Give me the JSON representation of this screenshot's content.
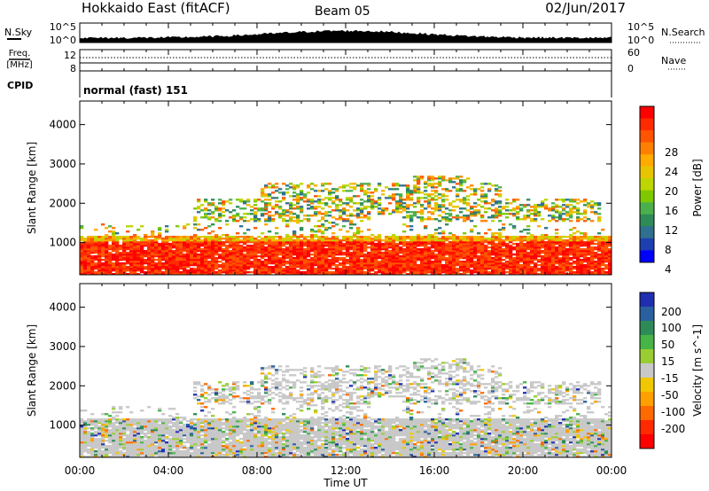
{
  "header": {
    "station": "Hokkaido East (fitACF)",
    "beam": "Beam 05",
    "date": "02/Jun/2017"
  },
  "noise_panel": {
    "left_label": "N.Sky",
    "right_label": "N.Search",
    "ticks": [
      "10^5",
      "10^0"
    ]
  },
  "freq_panel": {
    "left_label_1": "Freq.",
    "left_label_2": "[MHz]",
    "left_ticks": [
      "12",
      "8"
    ],
    "right_label": "Nave",
    "right_ticks": [
      "60",
      "0"
    ]
  },
  "cpid_panel": {
    "left_label": "CPID",
    "text": "normal (fast) 151"
  },
  "x_axis": {
    "label": "Time UT",
    "ticks": [
      "00:00",
      "04:00",
      "08:00",
      "12:00",
      "16:00",
      "20:00",
      "00:00"
    ]
  },
  "power_colorbar": {
    "label": "Power [dB]",
    "ticks": [
      "28",
      "24",
      "20",
      "16",
      "12",
      "8",
      "4"
    ],
    "colors": [
      "#ff0000",
      "#ff2a00",
      "#ff5500",
      "#ff8000",
      "#ffab00",
      "#e8c400",
      "#bdd500",
      "#7ec800",
      "#4bb04b",
      "#2e8b57",
      "#2f6f8f",
      "#1e3fb0",
      "#0000ff"
    ]
  },
  "velocity_colorbar": {
    "label": "Velocity [m s^-1]",
    "ticks": [
      "200",
      "100",
      "50",
      "15",
      "-15",
      "-50",
      "-100",
      "-200"
    ],
    "colors": [
      "#1f2fb0",
      "#2a5fa0",
      "#2e8b57",
      "#46b446",
      "#9acd32",
      "#c8c8c8",
      "#f0c800",
      "#ffa000",
      "#ff6a00",
      "#ff2a00",
      "#ff0000"
    ]
  },
  "chart_data": [
    {
      "type": "heatmap",
      "title": "Power",
      "xlabel": "Time UT",
      "ylabel": "Slant Range [km]",
      "xlim": [
        0,
        24
      ],
      "ylim": [
        180,
        4600
      ],
      "yticks": [
        "1000",
        "2000",
        "3000",
        "4000"
      ],
      "colorbar_label": "Power [dB]",
      "colorbar_range": [
        0,
        32
      ]
    },
    {
      "type": "heatmap",
      "title": "Velocity",
      "xlabel": "Time UT",
      "ylabel": "Slant Range [km]",
      "xlim": [
        0,
        24
      ],
      "ylim": [
        180,
        4600
      ],
      "yticks": [
        "1000",
        "2000",
        "3000",
        "4000"
      ],
      "colorbar_label": "Velocity [m s^-1]",
      "colorbar_range": [
        -250,
        250
      ]
    }
  ]
}
